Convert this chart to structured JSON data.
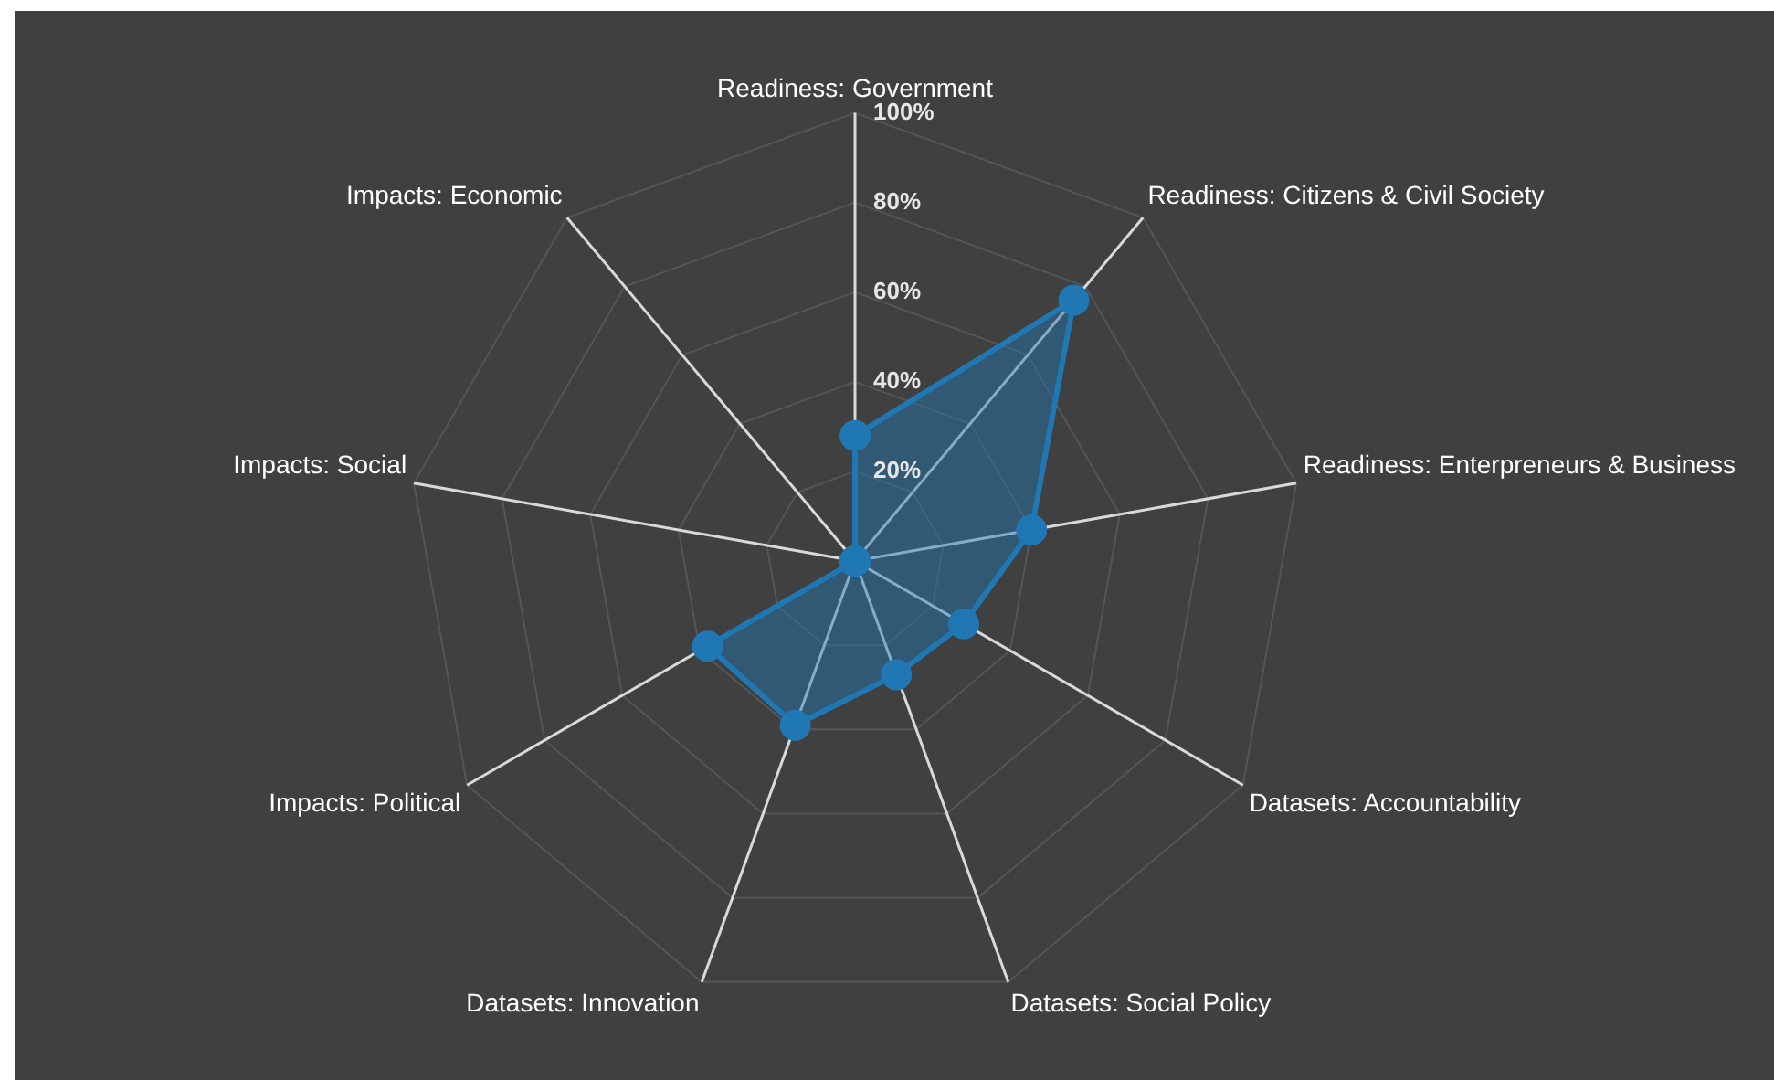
{
  "chart_data": {
    "type": "radar",
    "categories": [
      "Readiness: Government",
      "Readiness: Citizens & Civil Society",
      "Readiness: Enterpreneurs & Business",
      "Datasets: Accountability",
      "Datasets: Social Policy",
      "Datasets: Innovation",
      "Impacts: Political",
      "Impacts: Social",
      "Impacts: Economic"
    ],
    "series": [
      {
        "color": "#1f77b4",
        "values": [
          28,
          76,
          40,
          28,
          27,
          39,
          38,
          0,
          0
        ]
      }
    ],
    "ylim": [
      0,
      100
    ],
    "yticks": [
      {
        "value": 20,
        "label": "20%"
      },
      {
        "value": 40,
        "label": "40%"
      },
      {
        "value": 60,
        "label": "60%"
      },
      {
        "value": 80,
        "label": "80%"
      },
      {
        "value": 100,
        "label": "100%"
      }
    ],
    "grid": true,
    "legend": false,
    "marker": "circle"
  }
}
